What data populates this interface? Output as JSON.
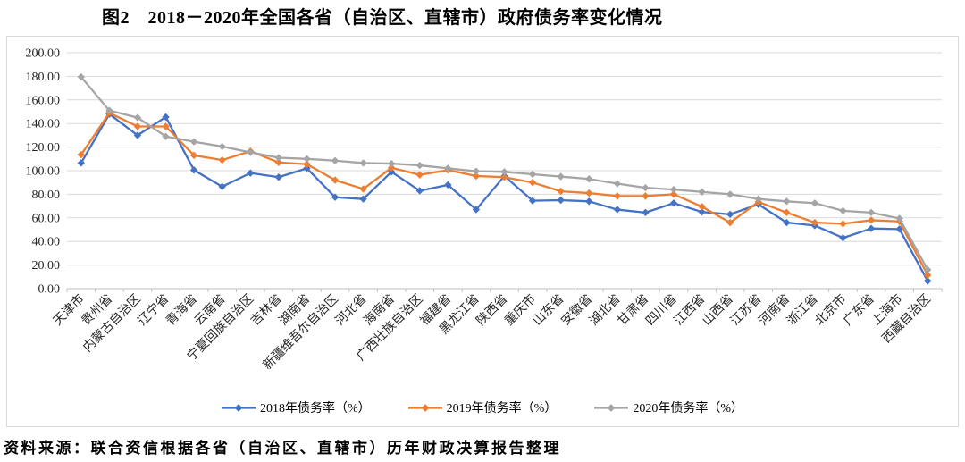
{
  "title": "图2　2018－2020年全国各省（自治区、直辖市）政府债务率变化情况",
  "source_note": "资料来源：联合资信根据各省（自治区、直辖市）历年财政决算报告整理",
  "chart_data": {
    "type": "line",
    "title": "2018－2020年全国各省（自治区、直辖市）政府债务率变化情况",
    "categories": [
      "天津市",
      "贵州省",
      "内蒙古自治区",
      "辽宁省",
      "青海省",
      "云南省",
      "宁夏回族自治区",
      "吉林省",
      "湖南省",
      "新疆维吾尔自治区",
      "河北省",
      "海南省",
      "广西壮族自治区",
      "福建省",
      "黑龙江省",
      "陕西省",
      "重庆市",
      "山东省",
      "安徽省",
      "湖北省",
      "甘肃省",
      "四川省",
      "江西省",
      "山西省",
      "江苏省",
      "河南省",
      "浙江省",
      "北京市",
      "广东省",
      "上海市",
      "西藏自治区"
    ],
    "series": [
      {
        "name": "2018年债务率（%）",
        "color": "#4472C4",
        "marker": "diamond",
        "values": [
          106.5,
          148,
          130,
          145.5,
          100.5,
          86.5,
          98,
          94.5,
          102,
          77.5,
          76,
          99,
          83,
          88,
          67,
          95.5,
          74.5,
          75,
          74,
          67,
          64.5,
          72.5,
          65,
          63,
          71.5,
          56,
          53.5,
          43,
          51,
          50.5,
          6.5
        ]
      },
      {
        "name": "2019年债务率（%）",
        "color": "#ED7D31",
        "marker": "diamond",
        "values": [
          113.5,
          149,
          137.5,
          137.5,
          113,
          109,
          116.5,
          107,
          105.5,
          92,
          84.5,
          102.5,
          96.5,
          100.5,
          95.5,
          94.5,
          90,
          82.5,
          81,
          78.5,
          78.5,
          80,
          69.5,
          56,
          73.5,
          64.5,
          56,
          55,
          58,
          57,
          11.5
        ]
      },
      {
        "name": "2020年债务率（%）",
        "color": "#A5A5A5",
        "marker": "diamond",
        "values": [
          179.5,
          151,
          145,
          129,
          124.5,
          120.5,
          115.5,
          111,
          110,
          108.5,
          106.5,
          106,
          104.5,
          102,
          99.5,
          99,
          97,
          95,
          93,
          89,
          85.5,
          84,
          82,
          80,
          76,
          74,
          72.5,
          66,
          64.5,
          59.5,
          16
        ]
      }
    ],
    "xlabel": "",
    "ylabel": "",
    "ylim": [
      0,
      200
    ],
    "ytick_step": 20,
    "ytick_decimals": 2,
    "grid": true,
    "grid_color": "#D9D9D9",
    "axis_line_color": "#BFBFBF",
    "axis_text_color": "#262626",
    "legend_position": "bottom",
    "x_label_rotation": -45
  }
}
